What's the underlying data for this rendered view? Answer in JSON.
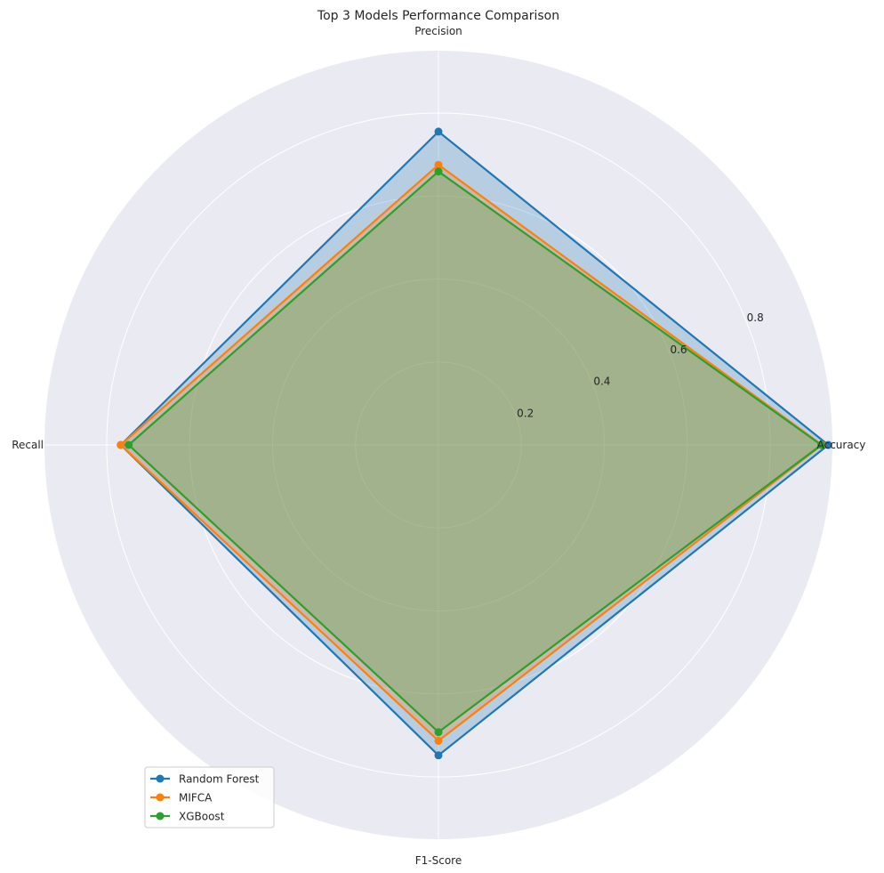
{
  "chart_data": {
    "type": "radar",
    "title": "Top 3 Models Performance Comparison",
    "axes": [
      "Accuracy",
      "Precision",
      "Recall",
      "F1-Score"
    ],
    "rlim": [
      0,
      0.95
    ],
    "rticks": [
      0.2,
      0.4,
      0.6,
      0.8
    ],
    "rtick_labels": [
      "0.2",
      "0.4",
      "0.6",
      "0.8"
    ],
    "grid": true,
    "legend_placement": "lower-left",
    "series": [
      {
        "name": "Random Forest",
        "color": "#1f77b4",
        "values": [
          0.94,
          0.755,
          0.766,
          0.748
        ]
      },
      {
        "name": "MIFCA",
        "color": "#ff7f0e",
        "values": [
          0.925,
          0.675,
          0.766,
          0.713
        ]
      },
      {
        "name": "XGBoost",
        "color": "#2ca02c",
        "values": [
          0.923,
          0.659,
          0.747,
          0.692
        ]
      }
    ]
  }
}
